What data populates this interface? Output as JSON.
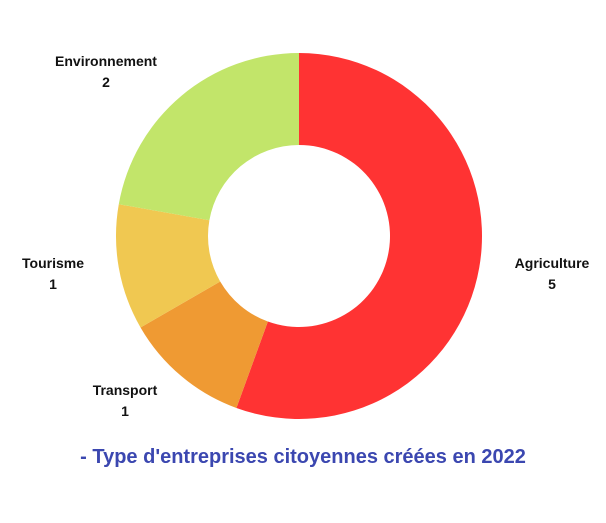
{
  "chart_data": {
    "type": "pie",
    "donut": true,
    "categories": [
      "Agriculture",
      "Transport",
      "Tourisme",
      "Environnement"
    ],
    "values": [
      5,
      1,
      1,
      2
    ],
    "colors": [
      "#ff3333",
      "#ef9a33",
      "#f0c851",
      "#c2e56a"
    ],
    "value_labels": [
      "5",
      "1",
      "1",
      "2"
    ],
    "caption": "- Type d'entreprises citoyennes créées en 2022",
    "legend": "none"
  }
}
